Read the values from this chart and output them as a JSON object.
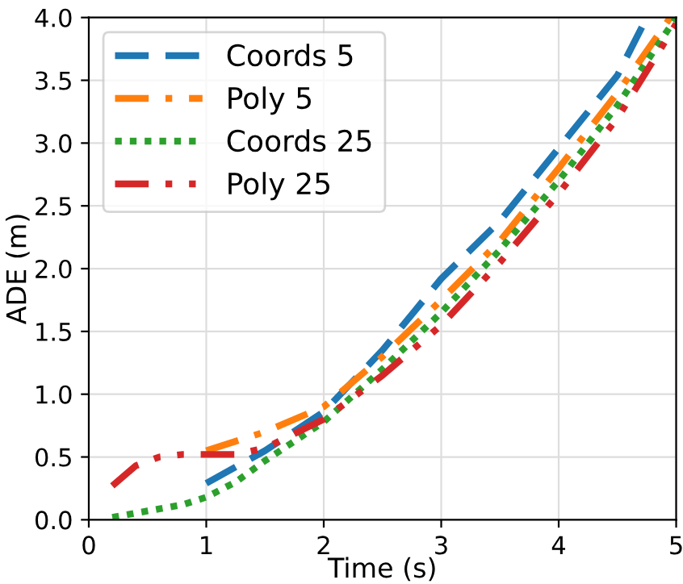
{
  "chart_data": {
    "type": "line",
    "xlabel": "Time (s)",
    "ylabel": "ADE (m)",
    "xlim": [
      0,
      5
    ],
    "ylim": [
      0,
      4
    ],
    "xticks": [
      0,
      1,
      2,
      3,
      4,
      5
    ],
    "yticks": [
      {
        "value": 0,
        "label": "0.0"
      },
      0.5,
      {
        "value": 1,
        "label": "1.0"
      },
      1.5,
      {
        "value": 2,
        "label": "2.0"
      },
      2.5,
      {
        "value": 3,
        "label": "3.0"
      },
      3.5,
      {
        "value": 4,
        "label": "4.0"
      }
    ],
    "grid": true,
    "legend": "top left",
    "series": [
      {
        "name": "Coords 5",
        "color": "#1f77b4",
        "line_style": "dashed",
        "x": [
          1.0,
          1.5,
          2.0,
          2.5,
          3.0,
          3.5,
          4.0,
          4.5,
          4.75
        ],
        "values": [
          0.29,
          0.55,
          0.86,
          1.35,
          1.92,
          2.38,
          2.96,
          3.54,
          4.0
        ]
      },
      {
        "name": "Poly 5",
        "color": "#ff7f0e",
        "line_style": "dashdot",
        "x": [
          1.0,
          1.5,
          2.0,
          2.5,
          3.0,
          3.5,
          4.0,
          4.5,
          4.95
        ],
        "values": [
          0.55,
          0.7,
          0.9,
          1.3,
          1.75,
          2.22,
          2.8,
          3.4,
          4.0
        ]
      },
      {
        "name": "Coords 25",
        "color": "#2ca02c",
        "line_style": "dotted",
        "x": [
          0.2,
          0.5,
          0.8,
          1.0,
          1.25,
          1.5,
          2.0,
          2.5,
          3.0,
          3.5,
          4.0,
          4.5,
          5.0
        ],
        "values": [
          0.02,
          0.07,
          0.12,
          0.18,
          0.3,
          0.47,
          0.78,
          1.2,
          1.65,
          2.15,
          2.7,
          3.3,
          4.0
        ]
      },
      {
        "name": "Poly 25",
        "color": "#d62728",
        "line_style": "dashdotdot",
        "x": [
          0.2,
          0.4,
          0.6,
          0.8,
          1.0,
          1.25,
          1.5,
          2.0,
          2.5,
          3.0,
          3.5,
          4.0,
          4.5,
          5.0
        ],
        "values": [
          0.27,
          0.43,
          0.5,
          0.52,
          0.52,
          0.52,
          0.57,
          0.8,
          1.15,
          1.55,
          2.05,
          2.6,
          3.2,
          3.95
        ]
      }
    ]
  }
}
